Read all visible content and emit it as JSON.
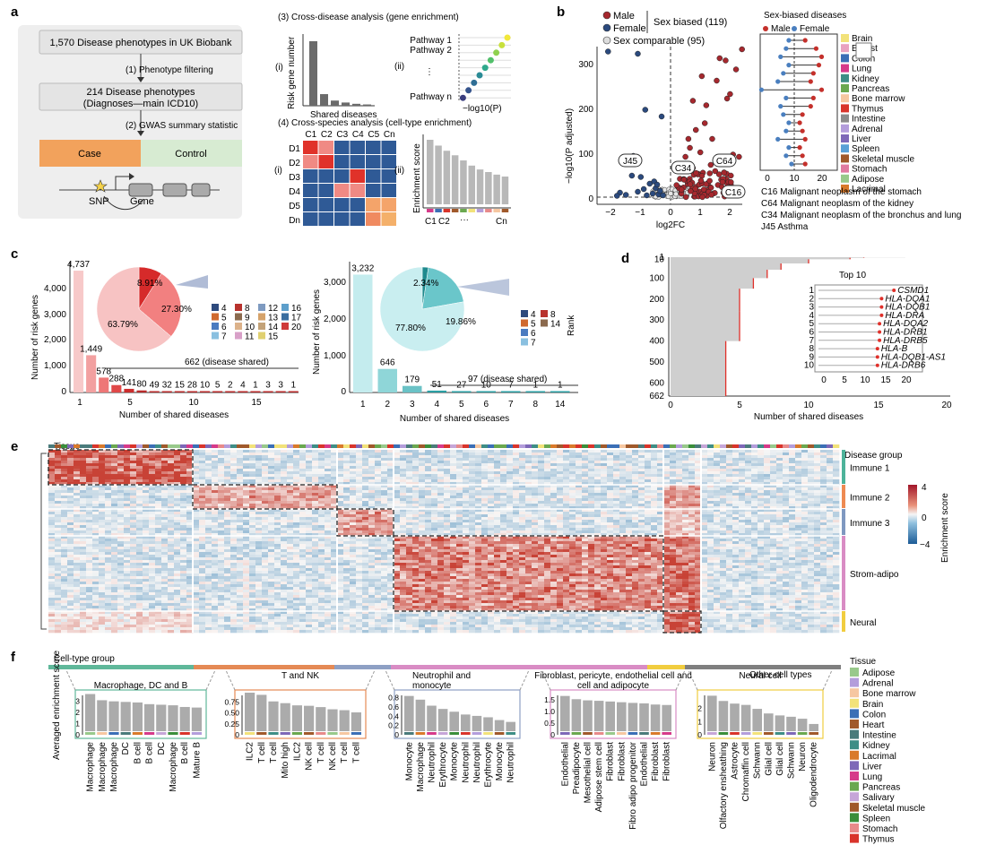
{
  "panel_labels": [
    "a",
    "b",
    "c",
    "d",
    "e",
    "f"
  ],
  "a": {
    "step1": "1,570 Disease phenotypes in UK Biobank",
    "arrow1": "(1)  Phenotype filtering",
    "step2_line1": "214 Disease phenotypes",
    "step2_line2": "(Diagnoses—main ICD10)",
    "arrow2": "(2)  GWAS summary statistic",
    "case": "Case",
    "control": "Control",
    "snp": "SNP",
    "gene": "Gene",
    "s3_title": "(3) Cross-disease analysis (gene enrichment)",
    "s3_i": "(i)",
    "s3_ii": "(ii)",
    "s3_ylabel": "Risk gene number",
    "s3_xlabel": "Shared diseases",
    "pathway1": "Pathway 1",
    "pathway2": "Pathway 2",
    "pathway_dots": "⋮",
    "pathwayn": "Pathway n",
    "s3_xlabel2": "−log10(P)",
    "s4_title": "(4) Cross-species analysis (cell-type enrichment)",
    "s4_i": "(i)",
    "s4_ii": "(ii)",
    "matrix_cols": [
      "C1",
      "C2",
      "C3",
      "C4",
      "C5",
      "Cn"
    ],
    "matrix_rows": [
      "D1",
      "D2",
      "D3",
      "D4",
      "D5",
      "Dn"
    ],
    "s4_ylabel": "Enrichment score",
    "s4_xticks": [
      "C1",
      "C2",
      "···",
      "Cn"
    ],
    "s3_bars": [
      100,
      18,
      8,
      5,
      3,
      2
    ],
    "s4_bars": [
      100,
      91,
      83,
      76,
      68,
      60,
      54,
      50,
      46,
      43
    ]
  },
  "b": {
    "legend_male": "Male",
    "legend_female": "Female",
    "legend_comparable": "Sex comparable (95)",
    "legend_biased": "Sex biased (119)",
    "xlabel": "log2FC",
    "ylabel": "−log10(P adjusted)",
    "yticks": [
      "0",
      "100",
      "200",
      "300"
    ],
    "xticks": [
      "−2",
      "−1",
      "0",
      "1",
      "2"
    ],
    "callouts": [
      "J45",
      "C34",
      "C64",
      "C16"
    ],
    "sb_title": "Sex-biased diseases",
    "sb_legend_male": "Male",
    "sb_legend_female": "Female",
    "sb_xticks": [
      "0",
      "10",
      "20"
    ],
    "tissues": [
      "Brain",
      "Breast",
      "Colon",
      "Lung",
      "Kidney",
      "Pancreas",
      "Bone marrow",
      "Thymus",
      "Intestine",
      "Adrenal",
      "Liver",
      "Spleen",
      "Skeletal muscle",
      "Stomach",
      "Adipose",
      "Lacrimal"
    ],
    "tissue_colors": [
      "#f2e27a",
      "#e9a2c0",
      "#3b6fb6",
      "#d63a8a",
      "#3e8e86",
      "#6aa84f",
      "#f6c7a1",
      "#d9342b",
      "#8c8c8c",
      "#b39ddb",
      "#7e68b8",
      "#5aa0d6",
      "#a0592b",
      "#e07aa0",
      "#98c98b",
      "#d97a2b"
    ],
    "notes": [
      "C16  Malignant neoplasm of the stomach",
      "C64  Malignant neoplasm of the kidney",
      "C34  Malignant neoplasm of the bronchus and lung",
      "J45  Asthma"
    ]
  },
  "c": {
    "left_ylabel": "Number of risk genes",
    "left_xlabel": "Number of shared diseases",
    "left_bar_values": [
      4737,
      1449,
      578,
      288,
      141,
      80,
      49,
      32,
      15,
      28,
      10,
      5,
      2,
      4,
      1,
      3,
      3,
      1
    ],
    "left_bar_labels": [
      "4,737",
      "1,449",
      "578",
      "288",
      "141",
      "80",
      "49",
      "32",
      "15",
      "28",
      "10",
      "5",
      "2",
      "4",
      "1",
      "3",
      "3",
      "1"
    ],
    "left_yticks": [
      "0",
      "1,000",
      "2,000",
      "3,000",
      "4,000"
    ],
    "left_xticks": [
      "1",
      "5",
      "10",
      "15"
    ],
    "left_shared": "662 (disease shared)",
    "left_pie_labels": [
      "8.91%",
      "27.30%",
      "63.79%"
    ],
    "left_legend": [
      "4",
      "5",
      "6",
      "7",
      "8",
      "9",
      "10",
      "11",
      "12",
      "13",
      "14",
      "15",
      "16",
      "17",
      "20"
    ],
    "left_legend_colors": [
      "#2e4a7d",
      "#d06a2f",
      "#4a7bc0",
      "#8ac0e0",
      "#b8322d",
      "#8b6a4e",
      "#dcb28a",
      "#d8a0c8",
      "#7e9ac0",
      "#d5a26a",
      "#c3a278",
      "#e0d070",
      "#5d9fcb",
      "#3a6ea0",
      "#cf3a3a"
    ],
    "right_ylabel": "Number of risk genes",
    "right_xlabel": "Number of shared diseases",
    "right_bar_values": [
      3232,
      646,
      179,
      51,
      27,
      10,
      7,
      1,
      1
    ],
    "right_bar_labels": [
      "3,232",
      "646",
      "179",
      "51",
      "27",
      "10",
      "7",
      "1",
      "1"
    ],
    "right_xticks": [
      "1",
      "2",
      "3",
      "4",
      "5",
      "6",
      "7",
      "8",
      "14"
    ],
    "right_yticks": [
      "0",
      "1,000",
      "2,000",
      "3,000"
    ],
    "right_shared": "97 (disease shared)",
    "right_pie_labels": [
      "2.34%",
      "19.86%",
      "77.80%"
    ],
    "right_legend": [
      "4",
      "5",
      "6",
      "7",
      "8",
      "14"
    ],
    "right_legend_colors": [
      "#2e4a7d",
      "#d06a2f",
      "#4a7bc0",
      "#8ac0e0",
      "#b8322d",
      "#8b6a4e"
    ],
    "rank_label": "Rank"
  },
  "d": {
    "xlabel": "Number of shared diseases",
    "xticks": [
      "0",
      "5",
      "10",
      "15",
      "20"
    ],
    "yticks": [
      "1",
      "10",
      "100",
      "200",
      "300",
      "400",
      "500",
      "600",
      "662"
    ],
    "top10_title": "Top 10",
    "top10_genes": [
      "CSMD1",
      "HLA-DQA1",
      "HLA-DQB1",
      "HLA-DRA",
      "HLA-DQA2",
      "HLA-DRB1",
      "HLA-DRB5",
      "HLA-B",
      "HLA-DQB1-AS1",
      "HLA-DRB6"
    ],
    "top10_values": [
      17,
      14,
      14,
      14,
      13.5,
      13.5,
      13.5,
      13,
      13,
      13
    ],
    "top10_ranks": [
      "1",
      "2",
      "3",
      "4",
      "5",
      "6",
      "7",
      "8",
      "9",
      "10"
    ],
    "inset_xticks": [
      "0",
      "5",
      "10",
      "15",
      "20"
    ]
  },
  "e": {
    "tissue_label": "Tissue",
    "disease_group_label": "Disease group",
    "groups": [
      "Immune 1",
      "Immune 2",
      "Immune 3",
      "Strom-adipo",
      "Neural"
    ],
    "group_colors": [
      "#4db39a",
      "#ee8a52",
      "#7f98c0",
      "#d98cc4",
      "#f1cd3f"
    ],
    "scale_label": "Enrichment score",
    "scale_ticks": [
      "4",
      "2",
      "0",
      "−2",
      "−4"
    ]
  },
  "f": {
    "cell_type_group_label": "Cell-type group",
    "ylabel": "Averaged enrichment score",
    "groups": [
      {
        "title": "Macrophage, DC and B",
        "color": "#5fb89a",
        "yticks": [
          "0",
          "1",
          "2",
          "3"
        ],
        "values": [
          3.3,
          2.75,
          2.65,
          2.6,
          2.55,
          2.4,
          2.35,
          2.3,
          2.15,
          2.1
        ],
        "labels": [
          "Macrophage",
          "Macrophage",
          "Macrophage",
          "DC",
          "B cell",
          "B cell",
          "DC",
          "Macrophage",
          "B cell",
          "Mature B"
        ]
      },
      {
        "title": "T and NK",
        "color": "#e58a55",
        "yticks": [
          "0",
          "0.25",
          "0.50",
          "0.75"
        ],
        "values": [
          0.88,
          0.83,
          0.68,
          0.64,
          0.59,
          0.58,
          0.55,
          0.5,
          0.48,
          0.43
        ],
        "labels": [
          "ILC2",
          "T cell",
          "T cell",
          "Mito high",
          "ILC2",
          "NK cell",
          "T cell",
          "NK cell",
          "T cell",
          "T cell"
        ]
      },
      {
        "title": "Neutrophil and monocyte",
        "color": "#8ea0c4",
        "yticks": [
          "0",
          "0.2",
          "0.4",
          "0.6",
          "0.8"
        ],
        "values": [
          0.76,
          0.68,
          0.55,
          0.48,
          0.42,
          0.36,
          0.33,
          0.3,
          0.24,
          0.2
        ],
        "labels": [
          "Monocyte",
          "Macrophage",
          "Neutrophil",
          "Erythrocyte",
          "Monocyte",
          "Neutrophil",
          "Neutrophil",
          "Erythrocyte",
          "Monocyte",
          "Neutrophil"
        ]
      },
      {
        "title": "Fibroblast, pericyte, endothelial cell and adipocyte",
        "color": "#d98cc4",
        "yticks": [
          "0",
          "0.5",
          "1.0",
          "1.5"
        ],
        "values": [
          1.52,
          1.38,
          1.33,
          1.31,
          1.28,
          1.25,
          1.22,
          1.2,
          1.15,
          1.13
        ],
        "labels": [
          "Endothelial",
          "Preadipocyte",
          "Mesothelial cell",
          "Adipose stem cell",
          "Fibroblast",
          "Fibroblast",
          "Fibro adipo progenitor",
          "Endothelial",
          "Fibroblast",
          "Fibroblast"
        ]
      },
      {
        "title": "Neural cell",
        "color": "#f1cd3f",
        "yticks": [
          "0",
          "1",
          "2"
        ],
        "values": [
          2.7,
          2.3,
          2.1,
          2.0,
          1.7,
          1.35,
          1.2,
          1.1,
          0.95,
          0.55
        ],
        "labels": [
          "Neuron",
          "Olfactory ensheathing",
          "Astrocyte",
          "Chromaffin cell",
          "Schwann",
          "Glial cell",
          "Glial cell",
          "Schwann",
          "Neuron",
          "Oligodendrocyte"
        ]
      }
    ],
    "other_label": "Other cell types",
    "tissue_legend_title": "Tissue",
    "tissue_legend": [
      "Adipose",
      "Adrenal",
      "Bone marrow",
      "Brain",
      "Colon",
      "Heart",
      "Intestine",
      "Kidney",
      "Lacrimal",
      "Liver",
      "Lung",
      "Pancreas",
      "Salivary",
      "Skeletal muscle",
      "Spleen",
      "Stomach",
      "Thymus"
    ],
    "tissue_legend_colors": [
      "#98c98b",
      "#b39ddb",
      "#f6c7a1",
      "#f2e27a",
      "#3b6fb6",
      "#a0592b",
      "#4a7b7b",
      "#3e8e86",
      "#d97a2b",
      "#7e68b8",
      "#d63a8a",
      "#6aa84f",
      "#c6a6d8",
      "#a0592b",
      "#3a8e3a",
      "#e88a8a",
      "#d9342b"
    ]
  }
}
